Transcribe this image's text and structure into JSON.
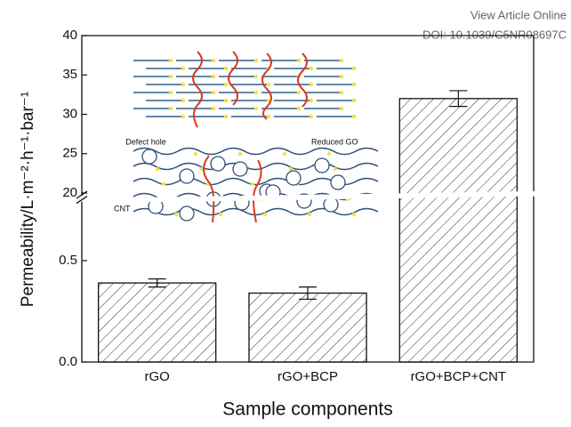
{
  "header": {
    "link": "View Article Online",
    "doi": "DOI: 10.1039/C5NR08697C"
  },
  "chart_data": {
    "type": "bar",
    "x_label": "Sample components",
    "y_label": "Permeability/L·m⁻²·h⁻¹·bar⁻¹",
    "categories": [
      "rGO",
      "rGO+BCP",
      "rGO+BCP+CNT"
    ],
    "values": [
      0.39,
      0.34,
      32
    ],
    "errors": [
      0.02,
      0.03,
      1
    ],
    "ylim": [
      0,
      40
    ],
    "ybreak": [
      0.8,
      20
    ],
    "yticks": [
      {
        "value": 0,
        "label": "0.0"
      },
      0.5,
      20,
      25,
      30,
      35,
      40
    ],
    "hatch": true,
    "inset_labels": [
      "Defect hole",
      "Reduced GO",
      "CNT"
    ]
  }
}
